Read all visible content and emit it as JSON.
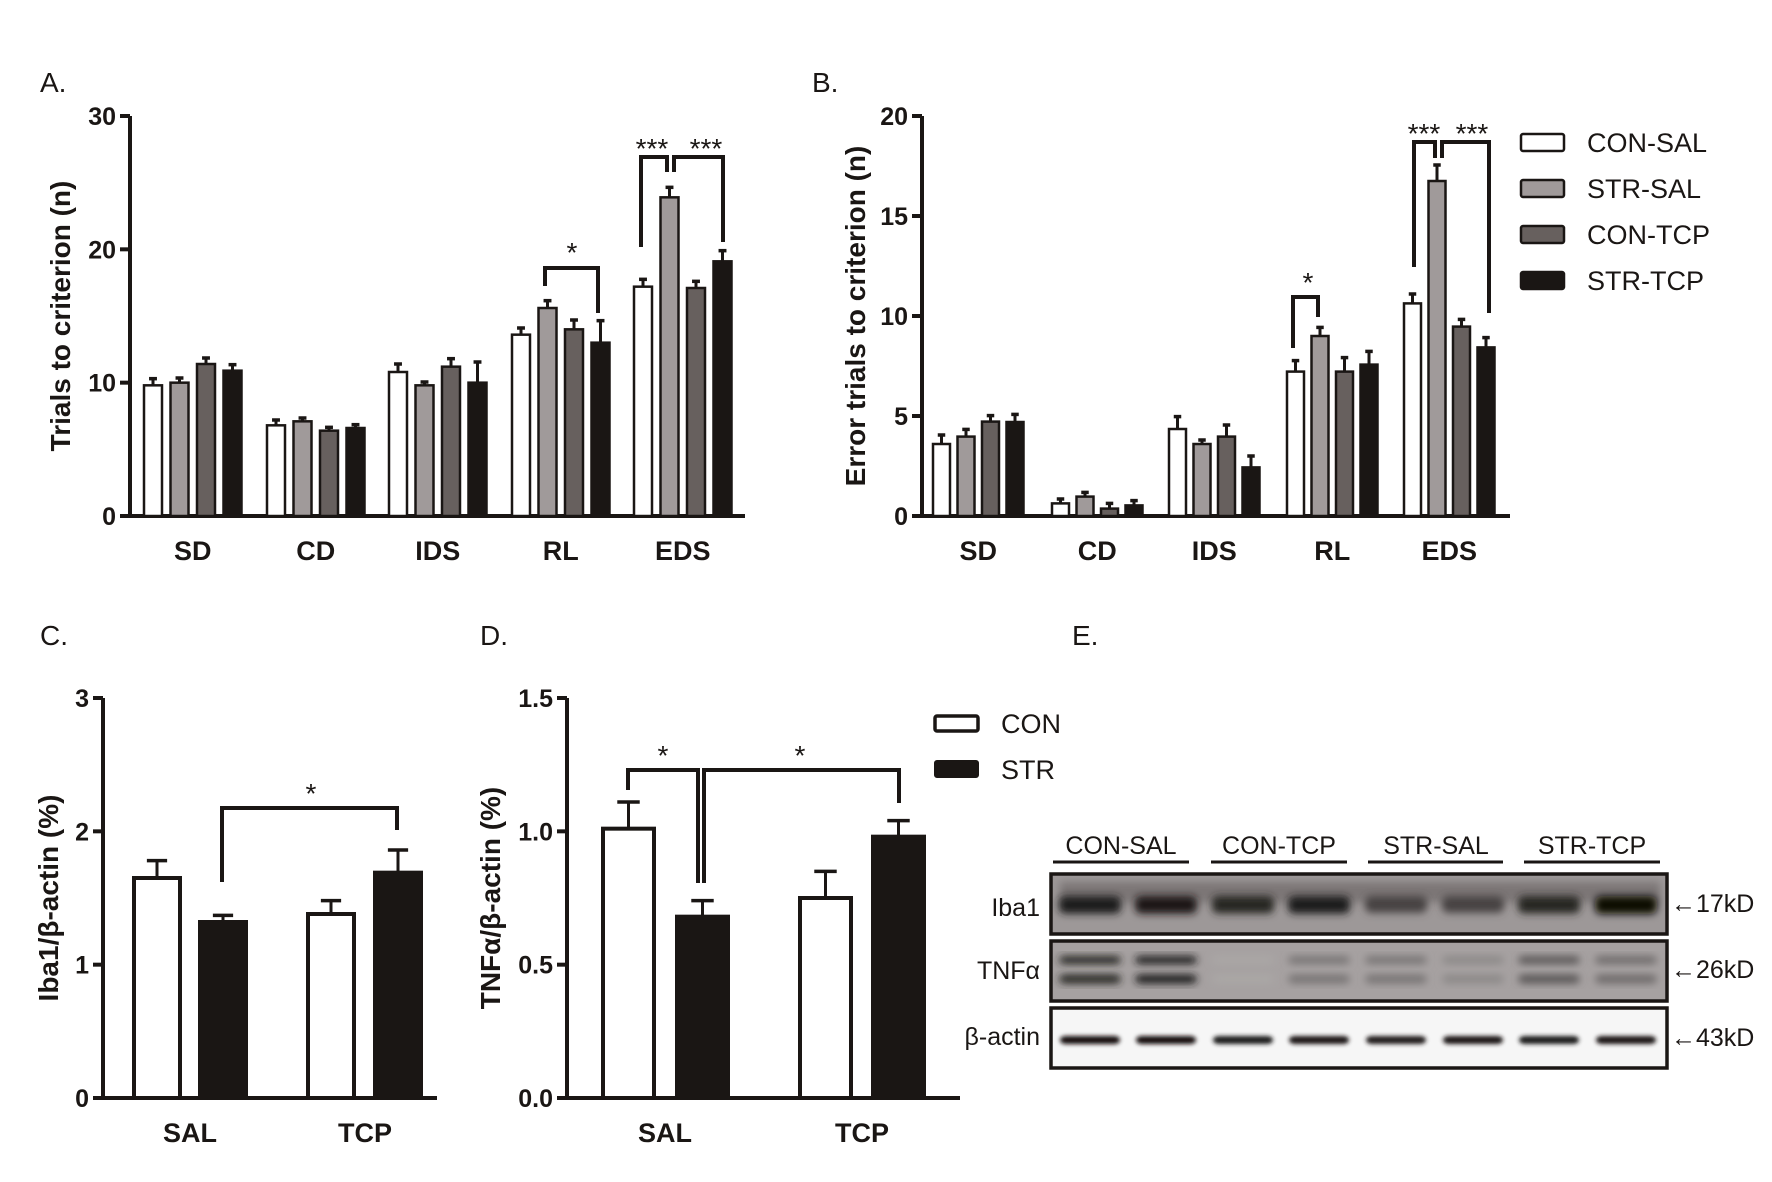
{
  "panel_labels": [
    "A.",
    "B.",
    "C.",
    "D.",
    "E."
  ],
  "colors": {
    "CON-SAL": "#ffffff",
    "STR-SAL": "#a09a9a",
    "CON-TCP": "#67605e",
    "STR-TCP": "#1a1614",
    "CON": "#ffffff",
    "STR": "#1a1614",
    "axis": "#1a1614"
  },
  "chart_data": [
    {
      "id": "A",
      "type": "bar",
      "title": "",
      "xlabel": "",
      "ylabel": "Trials to criterion (n)",
      "ylim": [
        0,
        30
      ],
      "yticks": [
        "0",
        "10",
        "20",
        "30"
      ],
      "categories": [
        "SD",
        "CD",
        "IDS",
        "RL",
        "EDS"
      ],
      "legend": "none",
      "series": [
        {
          "name": "CON-SAL",
          "values": [
            9.8,
            6.8,
            10.8,
            13.6,
            17.2
          ],
          "errors": [
            0.5,
            0.4,
            0.6,
            0.5,
            0.55
          ]
        },
        {
          "name": "STR-SAL",
          "values": [
            10.0,
            7.1,
            9.8,
            15.6,
            23.9
          ],
          "errors": [
            0.35,
            0.25,
            0.25,
            0.55,
            0.75
          ]
        },
        {
          "name": "CON-TCP",
          "values": [
            11.4,
            6.4,
            11.2,
            14.0,
            17.1
          ],
          "errors": [
            0.45,
            0.25,
            0.6,
            0.7,
            0.5
          ]
        },
        {
          "name": "STR-TCP",
          "values": [
            10.9,
            6.6,
            10.0,
            13.0,
            19.1
          ],
          "errors": [
            0.45,
            0.25,
            1.55,
            1.65,
            0.8
          ]
        }
      ],
      "annotations": [
        {
          "text": "*",
          "category": "RL",
          "from": "STR-SAL",
          "to": "STR-TCP"
        },
        {
          "text": "***",
          "category": "EDS",
          "from": "CON-SAL",
          "to": "STR-SAL"
        },
        {
          "text": "***",
          "category": "EDS",
          "from": "STR-SAL",
          "to": "STR-TCP"
        }
      ]
    },
    {
      "id": "B",
      "type": "bar",
      "title": "",
      "xlabel": "",
      "ylabel": "Error trials to criterion (n)",
      "ylim": [
        0,
        20
      ],
      "yticks": [
        "0",
        "5",
        "10",
        "15",
        "20"
      ],
      "categories": [
        "SD",
        "CD",
        "IDS",
        "RL",
        "EDS"
      ],
      "legend": "right",
      "series": [
        {
          "name": "CON-SAL",
          "values": [
            3.6,
            0.63,
            4.35,
            7.22,
            10.63
          ],
          "errors": [
            0.45,
            0.22,
            0.62,
            0.55,
            0.47
          ]
        },
        {
          "name": "STR-SAL",
          "values": [
            3.97,
            0.97,
            3.6,
            9.0,
            16.75
          ],
          "errors": [
            0.36,
            0.21,
            0.2,
            0.43,
            0.8
          ]
        },
        {
          "name": "CON-TCP",
          "values": [
            4.72,
            0.37,
            3.97,
            7.22,
            9.47
          ],
          "errors": [
            0.3,
            0.26,
            0.58,
            0.7,
            0.36
          ]
        },
        {
          "name": "STR-TCP",
          "values": [
            4.7,
            0.53,
            2.43,
            7.57,
            8.43
          ],
          "errors": [
            0.38,
            0.24,
            0.57,
            0.66,
            0.49
          ]
        }
      ],
      "annotations": [
        {
          "text": "*",
          "category": "RL",
          "from": "CON-SAL",
          "to": "STR-SAL"
        },
        {
          "text": "***",
          "category": "EDS",
          "from": "CON-SAL",
          "to": "STR-SAL"
        },
        {
          "text": "***",
          "category": "EDS",
          "from": "STR-SAL",
          "to": "STR-TCP"
        }
      ]
    },
    {
      "id": "C",
      "type": "bar",
      "title": "",
      "xlabel": "",
      "ylabel": "Iba1/β-actin (%)",
      "ylim": [
        0,
        3
      ],
      "yticks": [
        "0",
        "1",
        "2",
        "3"
      ],
      "categories": [
        "SAL",
        "TCP"
      ],
      "legend": "none",
      "series": [
        {
          "name": "CON",
          "values": [
            1.65,
            1.38
          ],
          "errors": [
            0.13,
            0.1
          ]
        },
        {
          "name": "STR",
          "values": [
            1.32,
            1.69
          ],
          "errors": [
            0.05,
            0.17
          ]
        }
      ],
      "annotations": [
        {
          "text": "*",
          "from": "SAL-STR",
          "to": "TCP-STR"
        }
      ]
    },
    {
      "id": "D",
      "type": "bar",
      "title": "",
      "xlabel": "",
      "ylabel": "TNFα/β-actin (%)",
      "ylim": [
        0,
        1.5
      ],
      "yticks": [
        "0.0",
        "0.5",
        "1.0",
        "1.5"
      ],
      "categories": [
        "SAL",
        "TCP"
      ],
      "legend": "top-right",
      "series": [
        {
          "name": "CON",
          "values": [
            1.01,
            0.75
          ],
          "errors": [
            0.1,
            0.1
          ]
        },
        {
          "name": "STR",
          "values": [
            0.68,
            0.98
          ],
          "errors": [
            0.06,
            0.06
          ]
        }
      ],
      "annotations": [
        {
          "text": "*",
          "from": "SAL-CON",
          "to": "SAL-STR"
        },
        {
          "text": "*",
          "from": "SAL-STR",
          "to": "TCP-STR"
        }
      ]
    }
  ],
  "blot": {
    "groups": [
      "CON-SAL",
      "CON-TCP",
      "STR-SAL",
      "STR-TCP"
    ],
    "rows": [
      {
        "label": "Iba1",
        "size": "←17kD",
        "intensity": [
          0.9,
          0.92,
          0.85,
          0.9,
          0.7,
          0.7,
          0.85,
          1.0
        ]
      },
      {
        "label": "TNFα",
        "size": "←26kD",
        "intensity": [
          0.85,
          0.9,
          0.2,
          0.45,
          0.45,
          0.35,
          0.6,
          0.5
        ]
      },
      {
        "label": "β-actin",
        "size": "←43kD",
        "intensity": [
          0.95,
          0.95,
          0.9,
          0.92,
          0.88,
          0.92,
          0.9,
          0.92
        ]
      }
    ]
  }
}
